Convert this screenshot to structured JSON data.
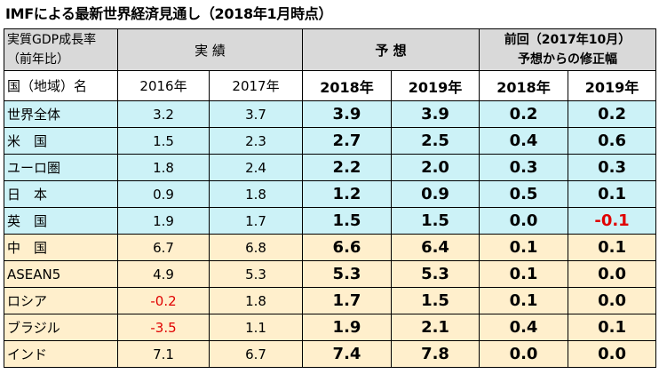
{
  "title": "IMFによる最新世界経済見通し（2018年1月時点）",
  "header": {
    "corner_line1": "実質GDP成長率",
    "corner_line2": "（前年比）",
    "actual_label": "実 績",
    "forecast_label": "予 想",
    "revision_line1": "前回（2017年10月）",
    "revision_line2": "予想からの修正幅",
    "country_label": "国（地域）名",
    "years": [
      "2016年",
      "2017年",
      "2018年",
      "2019年",
      "2018年",
      "2019年"
    ]
  },
  "rows": [
    {
      "name": "世界全体",
      "a2016": "3.2",
      "a2017": "3.7",
      "f2018": "3.9",
      "f2019": "3.9",
      "r2018": "0.2",
      "r2019": "0.2",
      "group": "adv"
    },
    {
      "name": "米　国",
      "a2016": "1.5",
      "a2017": "2.3",
      "f2018": "2.7",
      "f2019": "2.5",
      "r2018": "0.4",
      "r2019": "0.6",
      "group": "adv"
    },
    {
      "name": "ユーロ圏",
      "a2016": "1.8",
      "a2017": "2.4",
      "f2018": "2.2",
      "f2019": "2.0",
      "r2018": "0.3",
      "r2019": "0.3",
      "group": "adv"
    },
    {
      "name": "日　本",
      "a2016": "0.9",
      "a2017": "1.8",
      "f2018": "1.2",
      "f2019": "0.9",
      "r2018": "0.5",
      "r2019": "0.1",
      "group": "adv"
    },
    {
      "name": "英　国",
      "a2016": "1.9",
      "a2017": "1.7",
      "f2018": "1.5",
      "f2019": "1.5",
      "r2018": "0.0",
      "r2019": "-0.1",
      "group": "adv"
    },
    {
      "name": "中　国",
      "a2016": "6.7",
      "a2017": "6.8",
      "f2018": "6.6",
      "f2019": "6.4",
      "r2018": "0.1",
      "r2019": "0.1",
      "group": "emg"
    },
    {
      "name": "ASEAN5",
      "a2016": "4.9",
      "a2017": "5.3",
      "f2018": "5.3",
      "f2019": "5.3",
      "r2018": "0.1",
      "r2019": "0.0",
      "group": "emg"
    },
    {
      "name": "ロシア",
      "a2016": "-0.2",
      "a2017": "1.8",
      "f2018": "1.7",
      "f2019": "1.5",
      "r2018": "0.1",
      "r2019": "0.0",
      "group": "emg"
    },
    {
      "name": "ブラジル",
      "a2016": "-3.5",
      "a2017": "1.1",
      "f2018": "1.9",
      "f2019": "2.1",
      "r2018": "0.4",
      "r2019": "0.1",
      "group": "emg"
    },
    {
      "name": "インド",
      "a2016": "7.1",
      "a2017": "6.7",
      "f2018": "7.4",
      "f2019": "7.8",
      "r2018": "0.0",
      "r2019": "0.0",
      "group": "emg"
    }
  ],
  "colors": {
    "header_bg": "#d9d9d9",
    "advanced_row_bg": "#ccf2f7",
    "emerging_row_bg": "#ffefcc",
    "negative_text": "#e00000"
  }
}
